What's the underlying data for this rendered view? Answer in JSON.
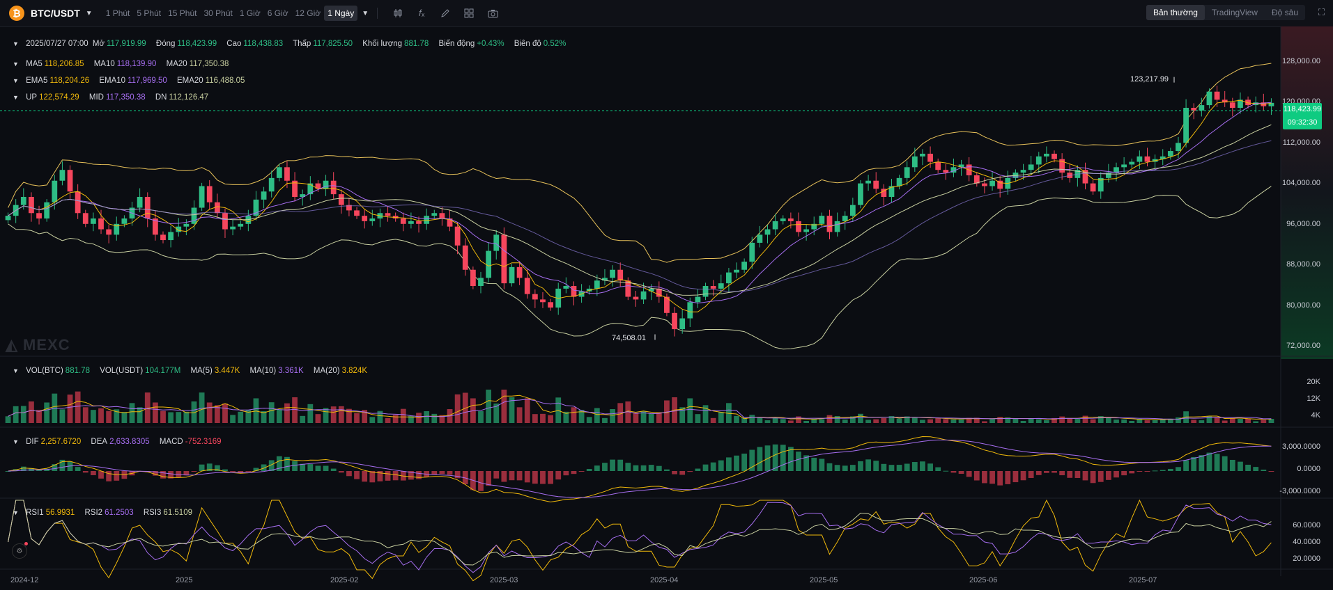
{
  "toolbar": {
    "pair": "BTC/USDT",
    "intervals": [
      "1 Phút",
      "5 Phút",
      "15 Phút",
      "30 Phút",
      "1 Giờ",
      "6 Giờ",
      "12 Giờ",
      "1 Ngày"
    ],
    "active_interval": "1 Ngày",
    "views": [
      "Bản thường",
      "TradingView",
      "Độ sâu"
    ],
    "active_view": "Bản thường"
  },
  "ohlc": {
    "date": "2025/07/27 07:00",
    "open_label": "Mở",
    "open": "117,919.99",
    "close_label": "Đóng",
    "close": "118,423.99",
    "high_label": "Cao",
    "high": "118,438.83",
    "low_label": "Thấp",
    "low": "117,825.50",
    "volume_label": "Khối lượng",
    "volume": "881.78",
    "change_label": "Biến động",
    "change": "+0.43%",
    "amplitude_label": "Biên độ",
    "amplitude": "0.52%"
  },
  "ma": {
    "ma5_label": "MA5",
    "ma5": "118,206.85",
    "ma10_label": "MA10",
    "ma10": "118,139.90",
    "ma20_label": "MA20",
    "ma20": "117,350.38"
  },
  "ema": {
    "ema5_label": "EMA5",
    "ema5": "118,204.26",
    "ema10_label": "EMA10",
    "ema10": "117,969.50",
    "ema20_label": "EMA20",
    "ema20": "116,488.05"
  },
  "boll": {
    "up_label": "UP",
    "up": "122,574.29",
    "mid_label": "MID",
    "mid": "117,350.38",
    "dn_label": "DN",
    "dn": "112,126.47"
  },
  "volume": {
    "btc_label": "VOL(BTC)",
    "btc": "881.78",
    "usdt_label": "VOL(USDT)",
    "usdt": "104.177M",
    "ma5_label": "MA(5)",
    "ma5": "3.447K",
    "ma10_label": "MA(10)",
    "ma10": "3.361K",
    "ma20_label": "MA(20)",
    "ma20": "3.824K"
  },
  "macd": {
    "dif_label": "DIF",
    "dif": "2,257.6720",
    "dea_label": "DEA",
    "dea": "2,633.8305",
    "macd_label": "MACD",
    "macd": "-752.3169"
  },
  "rsi": {
    "rsi1_label": "RSI1",
    "rsi1": "56.9931",
    "rsi2_label": "RSI2",
    "rsi2": "61.2503",
    "rsi3_label": "RSI3",
    "rsi3": "61.5109"
  },
  "price_axis": [
    "128,000.00",
    "120,000.00",
    "112,000.00",
    "104,000.00",
    "96,000.00",
    "88,000.00",
    "80,000.00",
    "72,000.00"
  ],
  "vol_axis": [
    "20K",
    "12K",
    "4K"
  ],
  "macd_axis": [
    "3,000.0000",
    "0.0000",
    "-3,000.0000"
  ],
  "rsi_axis": [
    "60.0000",
    "40.0000",
    "20.0000"
  ],
  "x_axis": [
    "2024-12",
    "2025",
    "2025-02",
    "2025-03",
    "2025-04",
    "2025-05",
    "2025-06",
    "2025-07"
  ],
  "current_price": "118,423.99",
  "countdown": "09:32:30",
  "high_marker": "123,217.99",
  "low_marker": "74,508.01",
  "watermark": "MEXC",
  "colors": {
    "up": "#2ebd85",
    "down": "#f6465d",
    "ma5": "#f0b90b",
    "ma10": "#a66ef0",
    "ma20": "#c8cfa0",
    "boll": "#e7c15a",
    "volup": "#1f7a56",
    "voldown": "#9a2e3d",
    "accent": "#0ecb81"
  },
  "chart_data": {
    "type": "candlestick",
    "series_price": "daily OHLC (approximate, 2024-12 to 2025-07-27)",
    "closes": [
      97500,
      99500,
      101000,
      98000,
      97000,
      100000,
      104000,
      106000,
      102000,
      98000,
      96000,
      97000,
      95000,
      94000,
      96000,
      97000,
      99000,
      101000,
      97000,
      94000,
      93000,
      94500,
      95500,
      96000,
      99000,
      103000,
      100000,
      98000,
      95000,
      95500,
      96000,
      97500,
      100500,
      102000,
      104500,
      106500,
      104000,
      101000,
      101500,
      103500,
      102500,
      104000,
      101500,
      99500,
      98500,
      97500,
      96500,
      97000,
      98000,
      97500,
      97000,
      96000,
      96500,
      96000,
      97500,
      98000,
      97000,
      95500,
      92000,
      87500,
      84500,
      86000,
      91000,
      94000,
      85000,
      88000,
      86000,
      83000,
      82000,
      81500,
      80500,
      84000,
      84500,
      82500,
      83500,
      84000,
      85500,
      86000,
      87500,
      85500,
      82500,
      82000,
      83500,
      84000,
      82500,
      79500,
      76500,
      78500,
      81500,
      82500,
      84500,
      84000,
      85000,
      87000,
      87500,
      89000,
      92500,
      94000,
      95000,
      96500,
      97000,
      96500,
      94500,
      95000,
      96000,
      97500,
      94500,
      96500,
      97500,
      99500,
      103500,
      104000,
      102500,
      101000,
      103000,
      104500,
      106500,
      108500,
      109000,
      107500,
      106000,
      105500,
      106500,
      107000,
      105000,
      103500,
      103000,
      104000,
      102500,
      104500,
      105500,
      106000,
      107000,
      108500,
      109000,
      108000,
      105500,
      104500,
      106000,
      103500,
      102000,
      104500,
      105500,
      106500,
      107000,
      107500,
      108500,
      107500,
      108000,
      108500,
      109500,
      111000,
      117500,
      117000,
      118000,
      120500,
      119000,
      118500,
      117500,
      119000,
      118000,
      118500,
      117800,
      118423
    ],
    "ylim": [
      72000,
      130000
    ],
    "high_marker": 123217.99,
    "low_marker": 74508.01
  }
}
